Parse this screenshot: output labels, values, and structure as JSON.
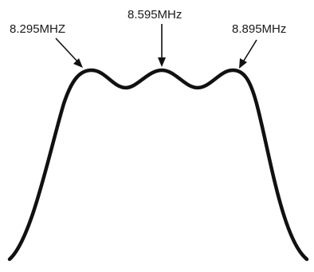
{
  "labels": {
    "left_peak": "8.295MHZ",
    "center_peak": "8.595MHz",
    "right_peak": "8.895MHz"
  },
  "colors": {
    "curve": "#111111",
    "text": "#1a1a1a",
    "background": "#ffffff"
  }
}
